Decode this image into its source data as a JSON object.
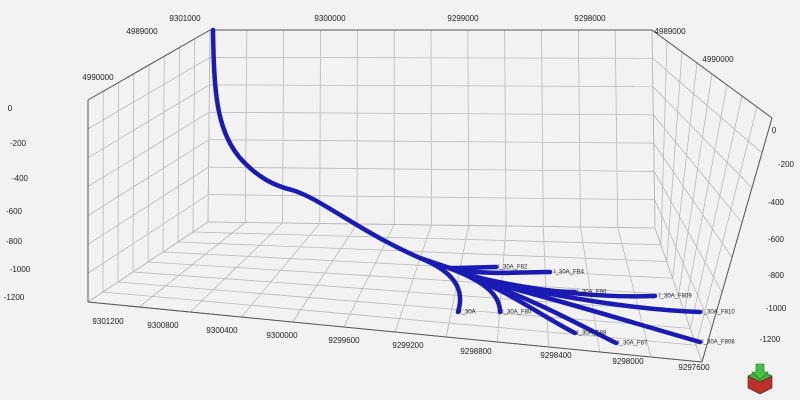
{
  "axes": {
    "top_x_ticks": [
      9301000,
      9300000,
      9299000,
      9298000
    ],
    "left_y_ticks": [
      4989000,
      4990000
    ],
    "right_y_ticks": [
      4989000,
      4990000
    ],
    "left_z_ticks": [
      0,
      -200,
      -400,
      -600,
      -800,
      -1000,
      -1200
    ],
    "right_z_ticks": [
      0,
      -200,
      -400,
      -600,
      -800,
      -1000,
      -1200
    ],
    "bottom_x_ticks": [
      9301200,
      9300800,
      9300400,
      9300000,
      9299600,
      9299200,
      9298800,
      9298400,
      9298000,
      9297600
    ]
  },
  "wells": [
    "I_30A_F82",
    "I_30A_FB4",
    "I_30A_F90",
    "I_30A_F809",
    "I_30A_F810",
    "I_30A",
    "I_30A_F80",
    "I_30A_F88",
    "I_30A_F87",
    "I_30A_F808"
  ]
}
